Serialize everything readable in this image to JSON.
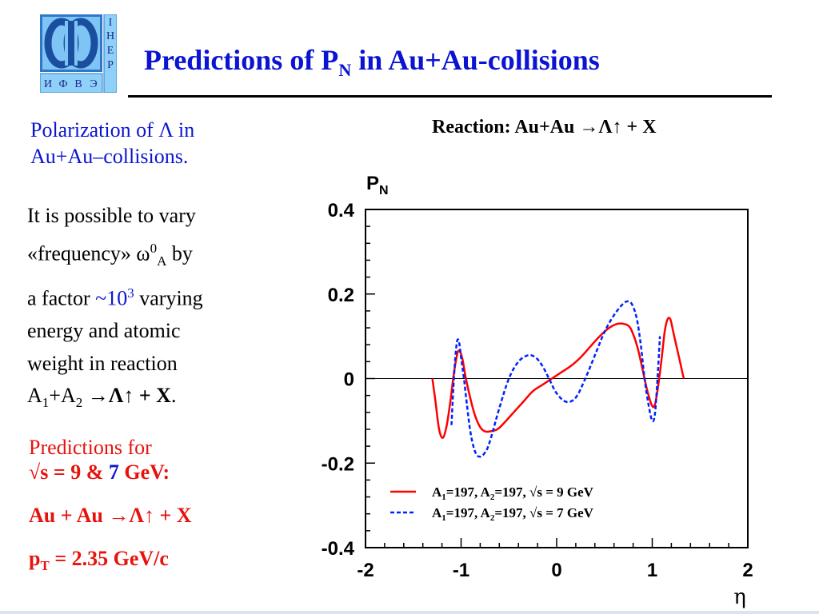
{
  "header": {
    "logo_letters": [
      "И",
      "Ф",
      "В",
      "Э"
    ],
    "logo_side_letters": [
      "I",
      "H",
      "E",
      "P"
    ],
    "title_pre": "Predictions of P",
    "title_sub": "N",
    "title_post": " in Au+Au-collisions"
  },
  "left": {
    "subtitle_1": "Polarization of Λ in",
    "subtitle_2": "Au+Au–collisions.",
    "p1_line1": "It is possible to vary",
    "p1_line2a": "«frequency» ω",
    "p1_line2_sup": "0",
    "p1_line2_sub": "A",
    "p1_line2b": " by",
    "p1_line3a": "a factor ",
    "p1_line3_blue": "~10",
    "p1_line3_sup": "3",
    "p1_line3b": " varying",
    "p1_line4": "energy and atomic",
    "p1_line5": "weight in reaction",
    "p1_line6_a": "A",
    "p1_line6_sub1": "1",
    "p1_line6_b": "+A",
    "p1_line6_sub2": "2",
    "p1_line6_c": " →",
    "p1_line6_bold": "Λ↑ + X",
    "p1_line6_end": ".",
    "pred_line1": "Predictions for",
    "pred_line2a": "√s = 9 & ",
    "pred_line2_blue": "7",
    "pred_line2b": " GeV:",
    "pred_line3": "Au + Au →Λ↑ + X",
    "pred_line4a": "p",
    "pred_line4_sub": "T",
    "pred_line4b": " = 2.35 GeV/c"
  },
  "chart_data": {
    "type": "line",
    "title": "Reaction: Au+Au →Λ↑ + X",
    "xlabel": "η",
    "ylabel": "P",
    "ylabel_sub": "N",
    "xlim": [
      -2,
      2
    ],
    "ylim": [
      -0.4,
      0.4
    ],
    "xticks": [
      "-2",
      "-1",
      "0",
      "1",
      "2"
    ],
    "yticks": [
      "0.4",
      "0.2",
      "0",
      "-0.2",
      "-0.4"
    ],
    "zero_line": true,
    "grid": false,
    "legend_position": "bottom-center",
    "series": [
      {
        "name": "A1=197, A2=197, √s = 9 GeV",
        "label_parts": [
          "A",
          "1",
          "=197,   A",
          "2",
          "=197,  √s = 9 GeV"
        ],
        "color": "#ff0000",
        "style": "solid",
        "x": [
          -1.3,
          -1.27,
          -1.23,
          -1.19,
          -1.15,
          -1.11,
          -1.07,
          -1.03,
          -0.99,
          -0.95,
          -0.9,
          -0.85,
          -0.8,
          -0.75,
          -0.7,
          -0.62,
          -0.55,
          -0.45,
          -0.35,
          -0.25,
          -0.15,
          -0.05,
          0.05,
          0.15,
          0.25,
          0.35,
          0.45,
          0.55,
          0.65,
          0.75,
          0.8,
          0.85,
          0.9,
          0.95,
          1.0,
          1.03,
          1.06,
          1.1,
          1.13,
          1.16,
          1.19,
          1.22,
          1.25,
          1.29,
          1.33
        ],
        "y": [
          0.0,
          -0.05,
          -0.12,
          -0.14,
          -0.11,
          -0.05,
          0.02,
          0.065,
          0.05,
          0.0,
          -0.05,
          -0.09,
          -0.115,
          -0.125,
          -0.125,
          -0.12,
          -0.105,
          -0.08,
          -0.055,
          -0.03,
          -0.015,
          0.0,
          0.015,
          0.03,
          0.05,
          0.075,
          0.1,
          0.12,
          0.13,
          0.125,
          0.105,
          0.07,
          0.02,
          -0.03,
          -0.065,
          -0.06,
          -0.02,
          0.05,
          0.11,
          0.14,
          0.14,
          0.11,
          0.08,
          0.04,
          0.0
        ]
      },
      {
        "name": "A1=197, A2=197, √s = 7 GeV",
        "label_parts": [
          "A",
          "1",
          "=197,   A",
          "2",
          "=197,  √s = 7 GeV"
        ],
        "color": "#0022ff",
        "style": "dashed",
        "x": [
          -1.1,
          -1.08,
          -1.06,
          -1.04,
          -1.02,
          -1.0,
          -0.97,
          -0.94,
          -0.9,
          -0.85,
          -0.8,
          -0.75,
          -0.7,
          -0.6,
          -0.5,
          -0.4,
          -0.3,
          -0.22,
          -0.15,
          -0.08,
          0.0,
          0.1,
          0.2,
          0.3,
          0.4,
          0.5,
          0.6,
          0.7,
          0.76,
          0.8,
          0.84,
          0.88,
          0.92,
          0.96,
          1.0,
          1.03,
          1.06,
          1.08
        ],
        "y": [
          -0.11,
          -0.02,
          0.05,
          0.09,
          0.085,
          0.05,
          0.0,
          -0.06,
          -0.13,
          -0.175,
          -0.185,
          -0.175,
          -0.15,
          -0.07,
          0.0,
          0.04,
          0.055,
          0.05,
          0.03,
          0.0,
          -0.035,
          -0.055,
          -0.045,
          0.0,
          0.055,
          0.11,
          0.15,
          0.178,
          0.182,
          0.17,
          0.14,
          0.08,
          0.0,
          -0.06,
          -0.1,
          -0.08,
          0.02,
          0.1
        ]
      }
    ]
  }
}
